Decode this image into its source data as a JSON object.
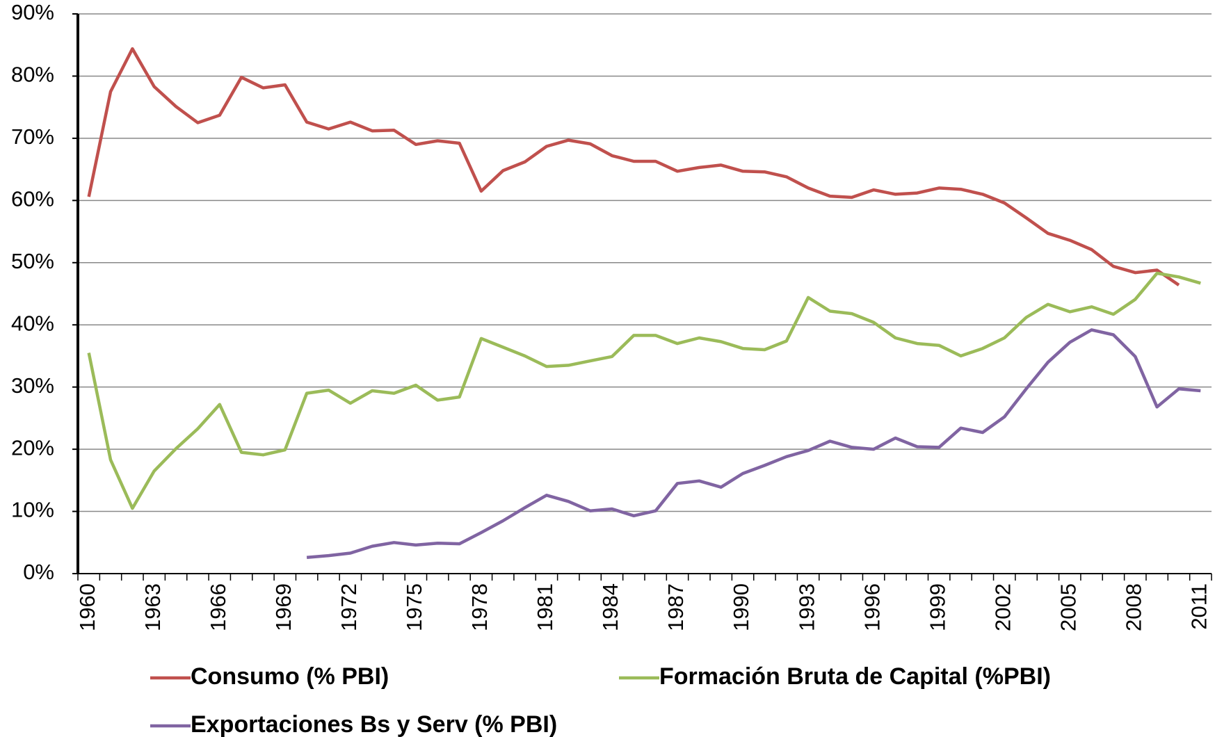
{
  "chart_data": {
    "type": "line",
    "categories": [
      "1960",
      null,
      null,
      "1963",
      null,
      null,
      "1966",
      null,
      null,
      "1969",
      null,
      null,
      "1972",
      null,
      null,
      "1975",
      null,
      null,
      "1978",
      null,
      null,
      "1981",
      null,
      null,
      "1984",
      null,
      null,
      "1987",
      null,
      null,
      "1990",
      null,
      null,
      "1993",
      null,
      null,
      "1996",
      null,
      null,
      "1999",
      null,
      null,
      "2002",
      null,
      null,
      "2005",
      null,
      null,
      "2008",
      null,
      null,
      "2011"
    ],
    "series": [
      {
        "name": "Consumo (% PBI)",
        "color": "#c0504d",
        "values": [
          60.6,
          77.5,
          84.4,
          78.3,
          75.1,
          72.5,
          73.7,
          79.8,
          78.1,
          78.6,
          72.6,
          71.5,
          72.6,
          71.2,
          71.3,
          69.0,
          69.6,
          69.2,
          61.5,
          64.8,
          66.2,
          68.7,
          69.7,
          69.1,
          67.2,
          66.3,
          66.3,
          64.7,
          65.3,
          65.7,
          64.7,
          64.6,
          63.8,
          62.0,
          60.7,
          60.5,
          61.7,
          61.0,
          61.2,
          62.0,
          61.8,
          61.0,
          59.6,
          57.2,
          54.7,
          53.6,
          52.1,
          49.4,
          48.4,
          48.8,
          46.4,
          null
        ]
      },
      {
        "name": "Formación Bruta de Capital (%PBI)",
        "color": "#9bbb59",
        "values": [
          35.5,
          18.3,
          10.5,
          16.5,
          20.1,
          23.3,
          27.2,
          19.5,
          19.1,
          19.9,
          29.0,
          29.5,
          27.4,
          29.4,
          29.0,
          30.3,
          27.9,
          28.4,
          37.8,
          36.4,
          35.0,
          33.3,
          33.5,
          34.2,
          34.9,
          38.3,
          38.3,
          37.0,
          37.9,
          37.3,
          36.2,
          36.0,
          37.4,
          44.4,
          42.2,
          41.8,
          40.4,
          37.9,
          37.0,
          36.7,
          35.0,
          36.2,
          37.9,
          41.2,
          43.3,
          42.1,
          42.9,
          41.7,
          44.1,
          48.3,
          47.7,
          46.7
        ]
      },
      {
        "name": "Exportaciones Bs y Serv (% PBI)",
        "color": "#8064a2",
        "values": [
          null,
          null,
          null,
          null,
          null,
          null,
          null,
          null,
          null,
          null,
          2.6,
          2.9,
          3.3,
          4.4,
          5.0,
          4.6,
          4.9,
          4.8,
          6.6,
          8.5,
          10.6,
          12.6,
          11.6,
          10.1,
          10.4,
          9.3,
          10.1,
          14.5,
          14.9,
          13.9,
          16.1,
          17.4,
          18.8,
          19.8,
          21.3,
          20.3,
          20.0,
          21.8,
          20.4,
          20.3,
          23.4,
          22.7,
          25.2,
          29.7,
          34.0,
          37.2,
          39.2,
          38.4,
          34.9,
          26.8,
          29.7,
          29.4
        ]
      }
    ],
    "ylim": [
      0,
      90
    ],
    "yticks": [
      {
        "value": 0,
        "label": "0%"
      },
      {
        "value": 10,
        "label": "10%"
      },
      {
        "value": 20,
        "label": "20%"
      },
      {
        "value": 30,
        "label": "30%"
      },
      {
        "value": 40,
        "label": "40%"
      },
      {
        "value": 50,
        "label": "50%"
      },
      {
        "value": 60,
        "label": "60%"
      },
      {
        "value": 70,
        "label": "70%"
      },
      {
        "value": 80,
        "label": "80%"
      },
      {
        "value": 90,
        "label": "90%"
      }
    ],
    "grid": true,
    "legend": "bottom"
  }
}
